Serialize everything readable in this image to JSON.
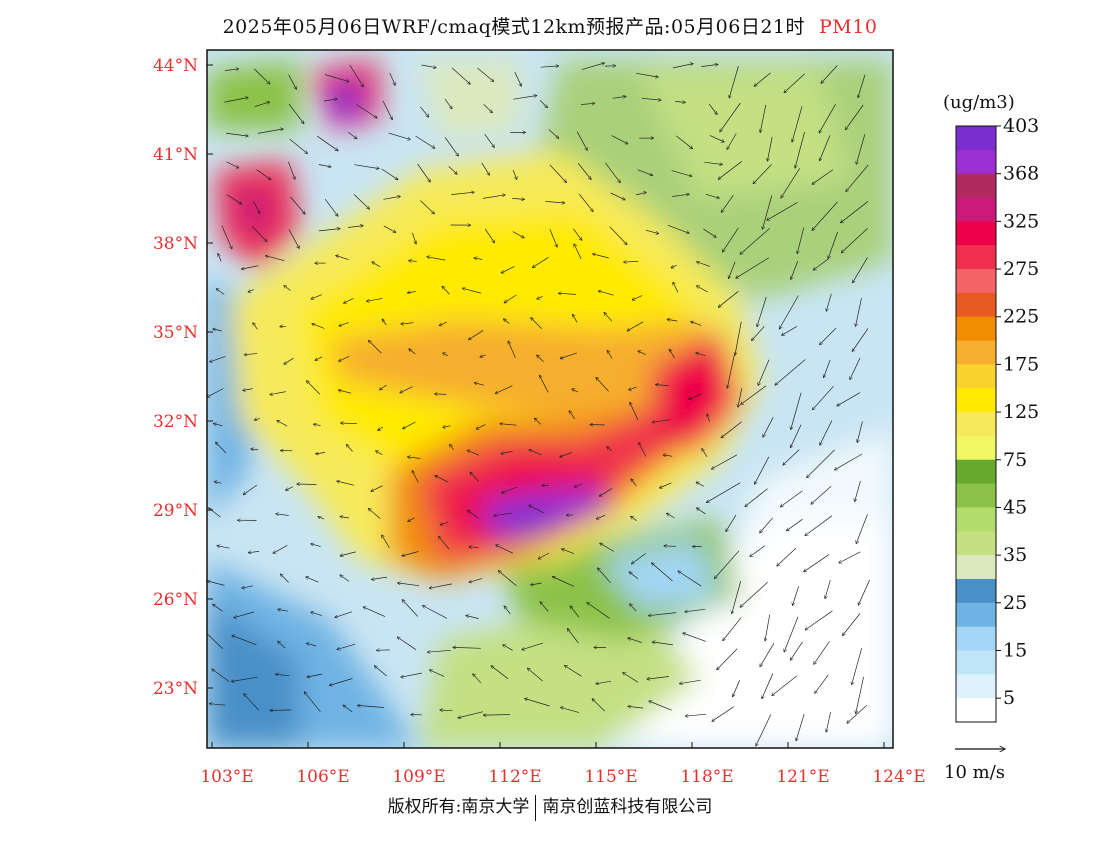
{
  "title": "2025年05月06日WRF/cmaq模式12km预报产品:05月06日21时",
  "variable": "PM10",
  "unit": "(ug/m3)",
  "lat_labels": [
    "44°N",
    "41°N",
    "38°N",
    "35°N",
    "32°N",
    "29°N",
    "26°N",
    "23°N"
  ],
  "lon_labels": [
    "103°E",
    "106°E",
    "109°E",
    "112°E",
    "115°E",
    "118°E",
    "121°E",
    "124°E"
  ],
  "colorbar": {
    "colors": [
      "#ffffff",
      "#dff1fb",
      "#bfe6f8",
      "#a2d6f4",
      "#6fb3e4",
      "#4a90c8",
      "#dce9bd",
      "#c4e083",
      "#b2dc6b",
      "#8cc24a",
      "#67a82f",
      "#f0f763",
      "#f6ea5a",
      "#ffea00",
      "#f9d22e",
      "#f6ae2f",
      "#f28c00",
      "#e85a1f",
      "#f36466",
      "#f0304c",
      "#ee0048",
      "#cc1a7a",
      "#b02a60",
      "#9c2fd1",
      "#7a2ed0"
    ],
    "labels": [
      "5",
      "15",
      "25",
      "35",
      "45",
      "75",
      "125",
      "175",
      "225",
      "275",
      "325",
      "368",
      "403"
    ]
  },
  "vector_label": "10 m/s",
  "footer": {
    "left": "版权所有:南京大学",
    "right": "南京创蓝科技有限公司"
  }
}
